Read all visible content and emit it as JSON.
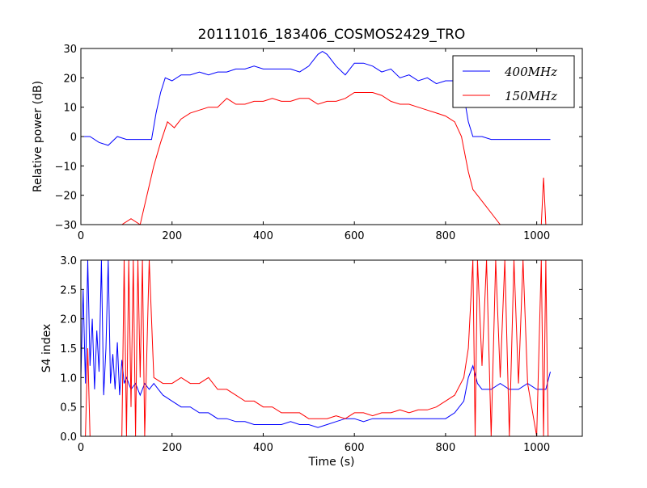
{
  "figure": {
    "title": "20111016_183406_COSMOS2429_TRO"
  },
  "chart_data": [
    {
      "type": "line",
      "name": "power",
      "xlabel": "",
      "ylabel": "Relative power (dB)",
      "xlim": [
        0,
        1100
      ],
      "ylim": [
        -30,
        30
      ],
      "xticks": [
        0,
        200,
        400,
        600,
        800,
        1000
      ],
      "yticks": [
        -30,
        -20,
        -10,
        0,
        10,
        20,
        30
      ],
      "grid": false,
      "legend": "top-right",
      "series": [
        {
          "name": "400MHz",
          "color": "#0000ff",
          "x": [
            0,
            20,
            40,
            60,
            80,
            100,
            120,
            140,
            155,
            165,
            175,
            185,
            200,
            220,
            240,
            260,
            280,
            300,
            320,
            340,
            360,
            380,
            400,
            420,
            440,
            460,
            480,
            500,
            520,
            530,
            540,
            560,
            580,
            600,
            620,
            640,
            660,
            680,
            700,
            720,
            740,
            760,
            780,
            800,
            820,
            830,
            840,
            850,
            860,
            880,
            900,
            950,
            1000,
            1030
          ],
          "y": [
            0,
            0,
            -2,
            -3,
            0,
            -1,
            -1,
            -1,
            -1,
            8,
            15,
            20,
            19,
            21,
            21,
            22,
            21,
            22,
            22,
            23,
            23,
            24,
            23,
            23,
            23,
            23,
            22,
            24,
            28,
            29,
            28,
            24,
            21,
            25,
            25,
            24,
            22,
            23,
            20,
            21,
            19,
            20,
            18,
            19,
            19,
            18,
            14,
            5,
            0,
            0,
            -1,
            -1,
            -1,
            -1
          ]
        },
        {
          "name": "150MHz",
          "color": "#ff0000",
          "x": [
            0,
            50,
            90,
            110,
            130,
            145,
            160,
            175,
            190,
            205,
            220,
            240,
            260,
            280,
            300,
            320,
            340,
            360,
            380,
            400,
            420,
            440,
            460,
            480,
            500,
            520,
            540,
            560,
            580,
            600,
            620,
            640,
            660,
            680,
            700,
            720,
            740,
            760,
            780,
            800,
            820,
            835,
            850,
            860,
            880,
            900,
            920,
            960,
            1000,
            1010,
            1015,
            1020
          ],
          "y": [
            -30,
            -30,
            -30,
            -28,
            -30,
            -20,
            -10,
            -2,
            5,
            3,
            6,
            8,
            9,
            10,
            10,
            13,
            11,
            11,
            12,
            12,
            13,
            12,
            12,
            13,
            13,
            11,
            12,
            12,
            13,
            15,
            15,
            15,
            14,
            12,
            11,
            11,
            10,
            9,
            8,
            7,
            5,
            0,
            -12,
            -18,
            -22,
            -26,
            -30,
            -30,
            -30,
            -30,
            -14,
            -30
          ]
        }
      ]
    },
    {
      "type": "line",
      "name": "s4",
      "xlabel": "Time (s)",
      "ylabel": "S4 index",
      "xlim": [
        0,
        1100
      ],
      "ylim": [
        0,
        3
      ],
      "xticks": [
        0,
        200,
        400,
        600,
        800,
        1000
      ],
      "yticks": [
        0.0,
        0.5,
        1.0,
        1.5,
        2.0,
        2.5,
        3.0
      ],
      "grid": false,
      "legend": "none",
      "series": [
        {
          "name": "400MHz",
          "color": "#0000ff",
          "x": [
            0,
            5,
            10,
            15,
            20,
            25,
            30,
            35,
            40,
            45,
            50,
            55,
            60,
            65,
            70,
            75,
            80,
            85,
            90,
            95,
            100,
            110,
            120,
            130,
            140,
            150,
            160,
            170,
            180,
            200,
            220,
            240,
            260,
            280,
            300,
            320,
            340,
            360,
            380,
            400,
            420,
            440,
            460,
            480,
            500,
            520,
            540,
            560,
            580,
            600,
            620,
            640,
            660,
            680,
            700,
            720,
            740,
            760,
            780,
            800,
            820,
            840,
            850,
            860,
            870,
            880,
            900,
            920,
            940,
            960,
            980,
            1000,
            1020,
            1030
          ],
          "y": [
            1.0,
            2.5,
            0.9,
            3.0,
            1.2,
            2.0,
            0.8,
            1.8,
            1.1,
            3.0,
            0.7,
            1.5,
            3.0,
            0.9,
            1.4,
            0.8,
            1.6,
            0.7,
            1.3,
            0.9,
            1.0,
            0.8,
            0.9,
            0.7,
            0.9,
            0.8,
            0.9,
            0.8,
            0.7,
            0.6,
            0.5,
            0.5,
            0.4,
            0.4,
            0.3,
            0.3,
            0.25,
            0.25,
            0.2,
            0.2,
            0.2,
            0.2,
            0.25,
            0.2,
            0.2,
            0.15,
            0.2,
            0.25,
            0.3,
            0.3,
            0.25,
            0.3,
            0.3,
            0.3,
            0.3,
            0.3,
            0.3,
            0.3,
            0.3,
            0.3,
            0.4,
            0.6,
            1.0,
            1.2,
            0.9,
            0.8,
            0.8,
            0.9,
            0.8,
            0.8,
            0.9,
            0.8,
            0.8,
            1.1
          ]
        },
        {
          "name": "150MHz",
          "color": "#ff0000",
          "x": [
            0,
            10,
            15,
            20,
            90,
            95,
            100,
            105,
            110,
            115,
            120,
            125,
            130,
            135,
            140,
            150,
            160,
            180,
            200,
            220,
            240,
            260,
            280,
            300,
            320,
            340,
            360,
            380,
            400,
            420,
            440,
            460,
            480,
            500,
            520,
            540,
            560,
            580,
            600,
            620,
            640,
            660,
            680,
            700,
            720,
            740,
            760,
            780,
            800,
            820,
            840,
            850,
            860,
            865,
            870,
            880,
            890,
            900,
            910,
            920,
            930,
            940,
            950,
            960,
            970,
            980,
            1000,
            1010,
            1015,
            1020,
            1025
          ],
          "y": [
            0,
            0,
            1.5,
            0,
            0,
            3.0,
            0,
            3.0,
            0.5,
            3.0,
            0,
            3.0,
            1.0,
            3.0,
            0,
            3.0,
            1.0,
            0.9,
            0.9,
            1.0,
            0.9,
            0.9,
            1.0,
            0.8,
            0.8,
            0.7,
            0.6,
            0.6,
            0.5,
            0.5,
            0.4,
            0.4,
            0.4,
            0.3,
            0.3,
            0.3,
            0.35,
            0.3,
            0.4,
            0.4,
            0.35,
            0.4,
            0.4,
            0.45,
            0.4,
            0.45,
            0.45,
            0.5,
            0.6,
            0.7,
            1.0,
            1.5,
            3.0,
            0,
            3.0,
            1.2,
            3.0,
            0,
            3.0,
            1.0,
            3.0,
            0,
            3.0,
            0.9,
            3.0,
            0.9,
            0,
            3.0,
            0,
            3.0,
            0
          ]
        }
      ]
    }
  ],
  "legend": {
    "items": [
      {
        "label": "400MHz",
        "color": "#0000ff"
      },
      {
        "label": "150MHz",
        "color": "#ff0000"
      }
    ]
  }
}
